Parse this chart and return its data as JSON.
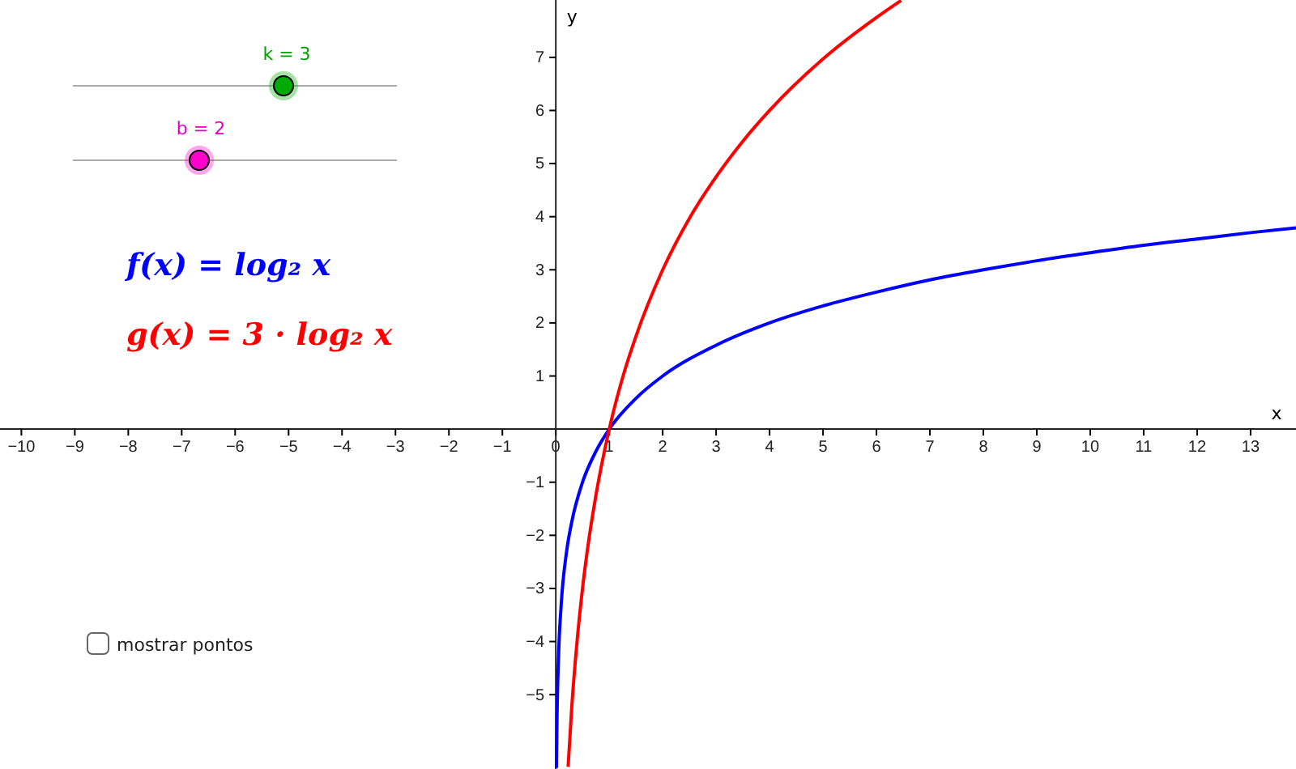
{
  "chart_data": {
    "type": "line",
    "xlabel": "x",
    "ylabel": "y",
    "xlim": [
      -10.4,
      13.85
    ],
    "ylim": [
      -6.4,
      8.08
    ],
    "xticks": [
      {
        "value": -10,
        "label": "−10"
      },
      {
        "value": -9,
        "label": "−9"
      },
      {
        "value": -8,
        "label": "−8"
      },
      {
        "value": -7,
        "label": "−7"
      },
      {
        "value": -6,
        "label": "−6"
      },
      {
        "value": -5,
        "label": "−5"
      },
      {
        "value": -4,
        "label": "−4"
      },
      {
        "value": -3,
        "label": "−3"
      },
      {
        "value": -2,
        "label": "−2"
      },
      {
        "value": -1,
        "label": "−1"
      },
      0,
      1,
      2,
      3,
      4,
      5,
      6,
      7,
      8,
      9,
      10,
      11,
      12,
      13
    ],
    "yticks": [
      {
        "value": -5,
        "label": "−5"
      },
      {
        "value": -4,
        "label": "−4"
      },
      {
        "value": -3,
        "label": "−3"
      },
      {
        "value": -2,
        "label": "−2"
      },
      {
        "value": -1,
        "label": "−1"
      },
      1,
      2,
      3,
      4,
      5,
      6,
      7
    ],
    "grid": false,
    "legend": false,
    "marker": "none",
    "line_style": "solid",
    "series": [
      {
        "color": "#0000ff",
        "x": [
          0.012,
          0.02,
          0.05,
          0.1,
          0.2,
          0.3,
          0.5,
          0.75,
          1,
          1.5,
          2,
          3,
          4,
          5,
          6,
          7,
          8,
          9,
          10,
          11,
          12,
          13,
          13.85
        ],
        "values": [
          -6.38,
          -5.64,
          -4.32,
          -3.32,
          -2.32,
          -1.74,
          -1,
          -0.42,
          0,
          0.58,
          1,
          1.58,
          2,
          2.32,
          2.58,
          2.81,
          3,
          3.17,
          3.32,
          3.46,
          3.58,
          3.7,
          3.79
        ]
      },
      {
        "color": "#ff0000",
        "x": [
          0.23,
          0.3,
          0.4,
          0.5,
          0.6,
          0.75,
          1,
          1.25,
          1.5,
          2,
          2.5,
          3,
          3.5,
          4,
          5,
          6,
          6.46
        ],
        "values": [
          -6.36,
          -5.21,
          -3.97,
          -3,
          -2.21,
          -1.25,
          0,
          0.97,
          1.75,
          3,
          3.97,
          4.75,
          5.42,
          6,
          6.97,
          7.75,
          8.07
        ]
      }
    ],
    "annotations": [
      "k = 3",
      "b = 2",
      "f(x) = log₂ x",
      "g(x) = 3 · log₂ x",
      "mostrar pontos"
    ]
  }
}
